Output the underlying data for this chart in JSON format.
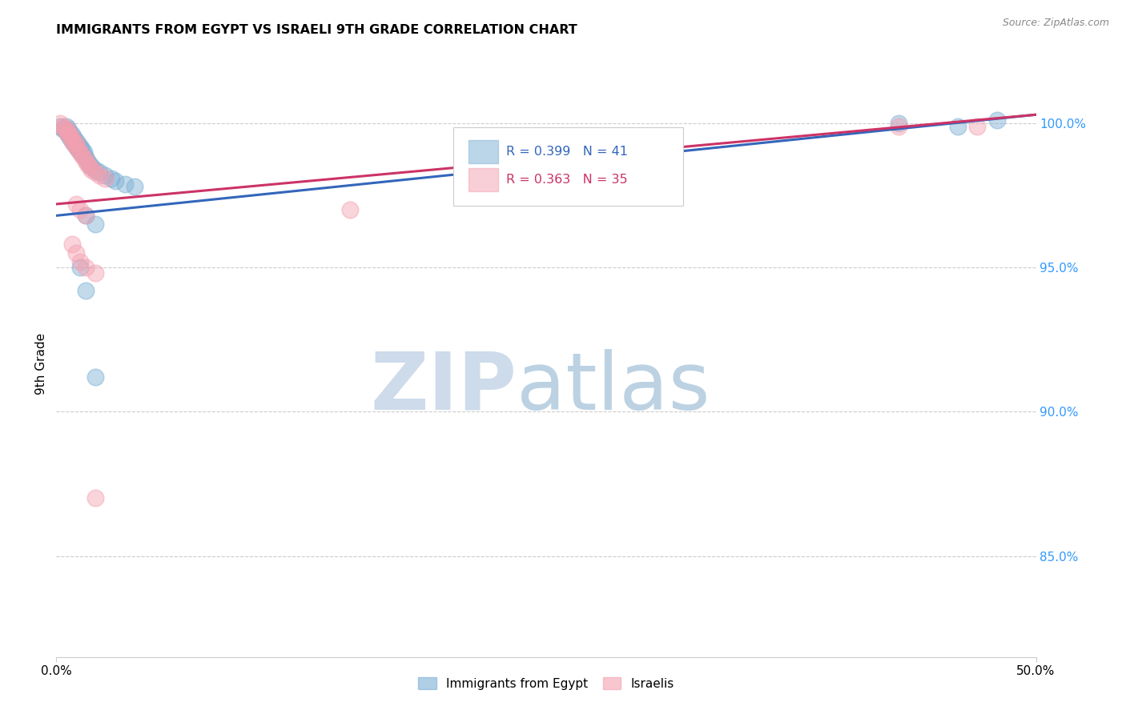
{
  "title": "IMMIGRANTS FROM EGYPT VS ISRAELI 9TH GRADE CORRELATION CHART",
  "source": "Source: ZipAtlas.com",
  "ylabel": "9th Grade",
  "ylabel_right_ticks": [
    "100.0%",
    "95.0%",
    "90.0%",
    "85.0%"
  ],
  "ylabel_right_values": [
    1.0,
    0.95,
    0.9,
    0.85
  ],
  "xlim": [
    0.0,
    0.5
  ],
  "ylim": [
    0.815,
    1.018
  ],
  "legend_blue_R": "R = 0.399",
  "legend_blue_N": "N = 41",
  "legend_pink_R": "R = 0.363",
  "legend_pink_N": "N = 35",
  "legend_label_blue": "Immigrants from Egypt",
  "legend_label_pink": "Israelis",
  "blue_color": "#7BAFD4",
  "pink_color": "#F4A0B0",
  "blue_scatter": [
    [
      0.002,
      0.999
    ],
    [
      0.003,
      0.998
    ],
    [
      0.004,
      0.998
    ],
    [
      0.005,
      0.999
    ],
    [
      0.005,
      0.997
    ],
    [
      0.006,
      0.998
    ],
    [
      0.006,
      0.996
    ],
    [
      0.007,
      0.997
    ],
    [
      0.007,
      0.995
    ],
    [
      0.008,
      0.996
    ],
    [
      0.008,
      0.994
    ],
    [
      0.009,
      0.995
    ],
    [
      0.009,
      0.993
    ],
    [
      0.01,
      0.994
    ],
    [
      0.01,
      0.992
    ],
    [
      0.011,
      0.993
    ],
    [
      0.011,
      0.991
    ],
    [
      0.012,
      0.992
    ],
    [
      0.012,
      0.99
    ],
    [
      0.013,
      0.991
    ],
    [
      0.014,
      0.99
    ],
    [
      0.014,
      0.989
    ],
    [
      0.015,
      0.988
    ],
    [
      0.016,
      0.987
    ],
    [
      0.017,
      0.986
    ],
    [
      0.018,
      0.985
    ],
    [
      0.02,
      0.984
    ],
    [
      0.022,
      0.983
    ],
    [
      0.025,
      0.982
    ],
    [
      0.028,
      0.981
    ],
    [
      0.03,
      0.98
    ],
    [
      0.035,
      0.979
    ],
    [
      0.04,
      0.978
    ],
    [
      0.015,
      0.968
    ],
    [
      0.02,
      0.965
    ],
    [
      0.012,
      0.95
    ],
    [
      0.015,
      0.942
    ],
    [
      0.02,
      0.912
    ],
    [
      0.43,
      1.0
    ],
    [
      0.46,
      0.999
    ],
    [
      0.48,
      1.001
    ]
  ],
  "pink_scatter": [
    [
      0.002,
      1.0
    ],
    [
      0.003,
      0.999
    ],
    [
      0.004,
      0.998
    ],
    [
      0.005,
      0.998
    ],
    [
      0.006,
      0.997
    ],
    [
      0.006,
      0.996
    ],
    [
      0.007,
      0.996
    ],
    [
      0.008,
      0.995
    ],
    [
      0.008,
      0.994
    ],
    [
      0.009,
      0.993
    ],
    [
      0.01,
      0.993
    ],
    [
      0.01,
      0.992
    ],
    [
      0.011,
      0.991
    ],
    [
      0.012,
      0.99
    ],
    [
      0.013,
      0.989
    ],
    [
      0.014,
      0.988
    ],
    [
      0.015,
      0.987
    ],
    [
      0.016,
      0.986
    ],
    [
      0.017,
      0.985
    ],
    [
      0.018,
      0.984
    ],
    [
      0.02,
      0.983
    ],
    [
      0.022,
      0.982
    ],
    [
      0.025,
      0.981
    ],
    [
      0.01,
      0.972
    ],
    [
      0.012,
      0.97
    ],
    [
      0.015,
      0.968
    ],
    [
      0.008,
      0.958
    ],
    [
      0.01,
      0.955
    ],
    [
      0.012,
      0.952
    ],
    [
      0.015,
      0.95
    ],
    [
      0.02,
      0.948
    ],
    [
      0.02,
      0.87
    ],
    [
      0.15,
      0.97
    ],
    [
      0.43,
      0.999
    ],
    [
      0.47,
      0.999
    ]
  ],
  "blue_line": {
    "x0": 0.0,
    "x1": 0.5,
    "y0": 0.968,
    "y1": 1.003
  },
  "pink_line": {
    "x0": 0.0,
    "x1": 0.5,
    "y0": 0.972,
    "y1": 1.003
  },
  "watermark_zip_color": "#C8D8E8",
  "watermark_atlas_color": "#A0C0D8",
  "background_color": "#ffffff",
  "grid_color": "#cccccc",
  "grid_style": "--"
}
